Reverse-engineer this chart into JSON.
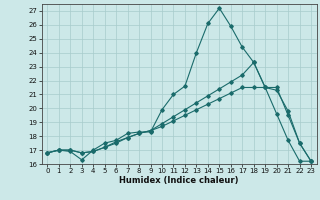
{
  "xlabel": "Humidex (Indice chaleur)",
  "xlim": [
    -0.5,
    23.5
  ],
  "ylim": [
    16,
    27.5
  ],
  "yticks": [
    16,
    17,
    18,
    19,
    20,
    21,
    22,
    23,
    24,
    25,
    26,
    27
  ],
  "xticks": [
    0,
    1,
    2,
    3,
    4,
    5,
    6,
    7,
    8,
    9,
    10,
    11,
    12,
    13,
    14,
    15,
    16,
    17,
    18,
    19,
    20,
    21,
    22,
    23
  ],
  "bg_color": "#cce8e8",
  "grid_color": "#a8cccc",
  "line_color": "#1a6b6b",
  "line1_x": [
    0,
    1,
    2,
    3,
    4,
    5,
    6,
    7,
    8,
    9,
    10,
    11,
    12,
    13,
    14,
    15,
    16,
    17,
    18,
    19,
    20,
    21,
    22,
    23
  ],
  "line1_y": [
    16.8,
    17.0,
    16.9,
    16.3,
    17.0,
    17.5,
    17.7,
    18.2,
    18.3,
    18.3,
    19.9,
    21.0,
    21.6,
    24.0,
    26.1,
    27.2,
    25.9,
    24.4,
    23.3,
    21.5,
    19.6,
    17.7,
    16.2,
    16.2
  ],
  "line2_x": [
    0,
    1,
    2,
    3,
    4,
    5,
    6,
    7,
    8,
    9,
    10,
    11,
    12,
    13,
    14,
    15,
    16,
    17,
    18,
    19,
    20,
    21,
    22,
    23
  ],
  "line2_y": [
    16.8,
    17.0,
    17.0,
    16.8,
    16.9,
    17.2,
    17.6,
    17.9,
    18.2,
    18.4,
    18.9,
    19.4,
    19.9,
    20.4,
    20.9,
    21.4,
    21.9,
    22.4,
    23.3,
    21.5,
    21.3,
    19.8,
    17.5,
    16.2
  ],
  "line3_x": [
    0,
    1,
    2,
    3,
    4,
    5,
    6,
    7,
    8,
    9,
    10,
    11,
    12,
    13,
    14,
    15,
    16,
    17,
    18,
    19,
    20,
    21,
    22,
    23
  ],
  "line3_y": [
    16.8,
    17.0,
    17.0,
    16.8,
    16.9,
    17.2,
    17.5,
    17.9,
    18.2,
    18.4,
    18.7,
    19.1,
    19.5,
    19.9,
    20.3,
    20.7,
    21.1,
    21.5,
    21.5,
    21.5,
    21.5,
    19.5,
    17.5,
    16.2
  ]
}
